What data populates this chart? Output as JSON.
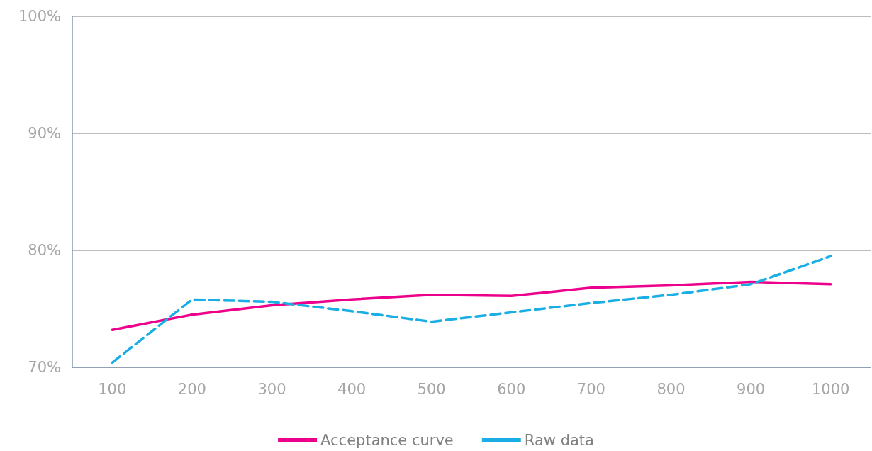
{
  "chart_data": {
    "type": "line",
    "categories": [
      "100",
      "200",
      "300",
      "400",
      "500",
      "600",
      "700",
      "800",
      "900",
      "1000"
    ],
    "series": [
      {
        "name": "Acceptance curve",
        "color": "#ec008c",
        "line_style": "solid",
        "values": [
          73.2,
          74.5,
          75.3,
          75.8,
          76.2,
          76.1,
          76.8,
          77.0,
          77.3,
          77.1
        ]
      },
      {
        "name": "Raw data",
        "color": "#1aaee5",
        "line_style": "dashed",
        "values": [
          70.4,
          75.8,
          75.6,
          74.8,
          73.9,
          74.7,
          75.5,
          76.2,
          77.1,
          79.5
        ]
      }
    ],
    "ylim": [
      70,
      100
    ],
    "yticks": [
      {
        "value": 70,
        "label": "70%"
      },
      {
        "value": 80,
        "label": "80%"
      },
      {
        "value": 90,
        "label": "90%"
      },
      {
        "value": 100,
        "label": "100%"
      }
    ],
    "grid": "y",
    "legend": "bottom",
    "marker": "none"
  }
}
